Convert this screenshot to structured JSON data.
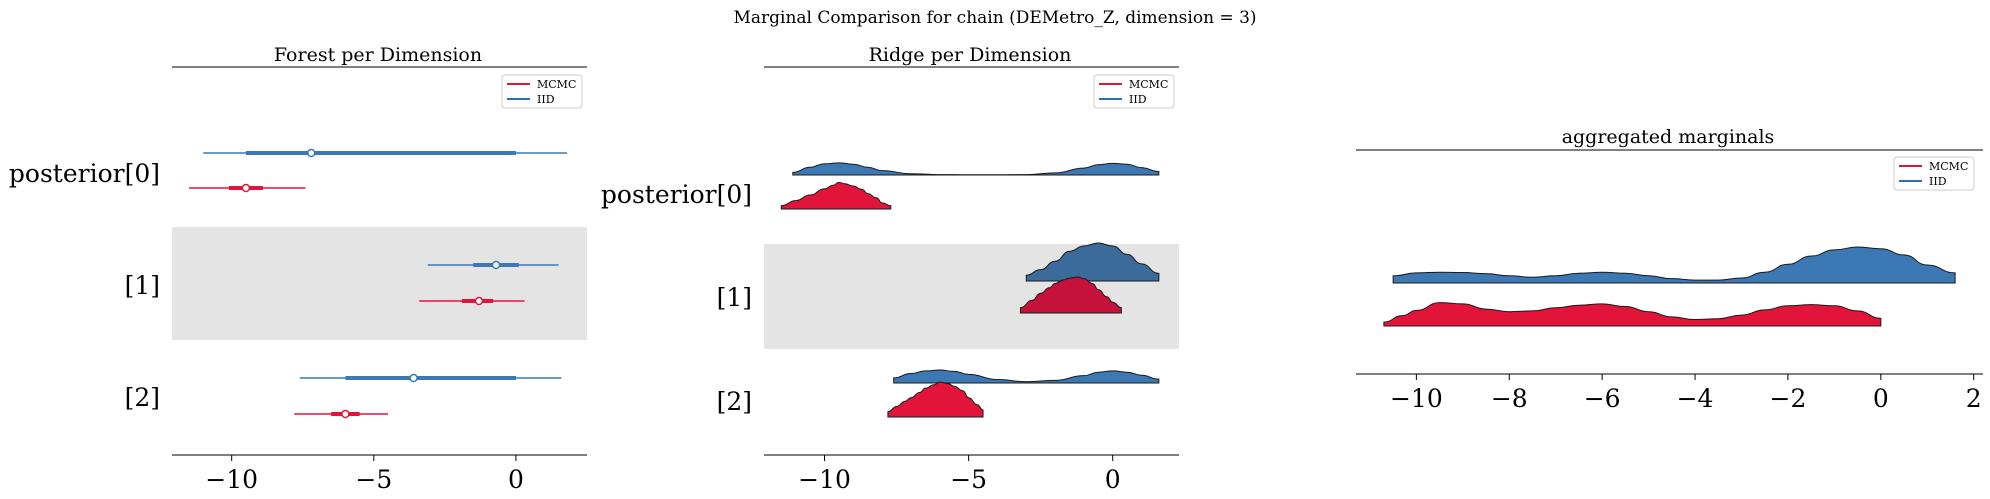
{
  "suptitle": "Marginal Comparison for chain (DEMetro_Z, dimension = 3)",
  "colors": {
    "mcmc": "#e3143a",
    "mcmc_shade": "#c5123a",
    "iid": "#3c78b4",
    "iid_line": "#2c6cb8",
    "band": "#e4e4e4"
  },
  "chart_data": [
    {
      "type": "forest",
      "title": "Forest per Dimension",
      "y_labels": [
        "posterior[0]",
        "[1]",
        "[2]"
      ],
      "x_ticks": [
        "−10",
        "−5",
        "0"
      ],
      "x_tick_values": [
        -10,
        -5,
        0
      ],
      "xlim": [
        -12.1,
        2.5
      ],
      "legend": {
        "position": "top-right",
        "entries": [
          "MCMC",
          "IID"
        ]
      },
      "series": [
        {
          "name": "IID",
          "color": "#3c78b4",
          "intervals": [
            {
              "dim": 0,
              "hdi": [
                -11,
                1.8
              ],
              "iqr": [
                -9.5,
                0
              ],
              "median": -7.2
            },
            {
              "dim": 1,
              "hdi": [
                -3.1,
                1.5
              ],
              "iqr": [
                -1.5,
                0.1
              ],
              "median": -0.7
            },
            {
              "dim": 2,
              "hdi": [
                -7.6,
                1.6
              ],
              "iqr": [
                -6.0,
                0
              ],
              "median": -3.6
            }
          ]
        },
        {
          "name": "MCMC",
          "color": "#e3143a",
          "intervals": [
            {
              "dim": 0,
              "hdi": [
                -11.5,
                -7.4
              ],
              "iqr": [
                -10.1,
                -8.9
              ],
              "median": -9.5
            },
            {
              "dim": 1,
              "hdi": [
                -3.4,
                0.3
              ],
              "iqr": [
                -1.9,
                -0.8
              ],
              "median": -1.3
            },
            {
              "dim": 2,
              "hdi": [
                -7.8,
                -4.5
              ],
              "iqr": [
                -6.5,
                -5.5
              ],
              "median": -6.0
            }
          ]
        }
      ]
    },
    {
      "type": "ridge",
      "title": "Ridge per Dimension",
      "y_labels": [
        "posterior[0]",
        "[1]",
        "[2]"
      ],
      "x_ticks": [
        "−10",
        "−5",
        "0"
      ],
      "x_tick_values": [
        -10,
        -5,
        0
      ],
      "xlim": [
        -12.1,
        2.3
      ],
      "legend": {
        "position": "top-right",
        "entries": [
          "MCMC",
          "IID"
        ]
      },
      "series": [
        {
          "name": "IID",
          "color": "#3c78b4",
          "ridges": [
            {
              "dim": 0,
              "x": [
                -11.1,
                -10.5,
                -10,
                -9.5,
                -9,
                -8.5,
                -8,
                -7,
                -6,
                -5,
                -4,
                -3,
                -2,
                -1,
                -0.5,
                0,
                0.5,
                1,
                1.6
              ],
              "density": [
                0.06,
                0.18,
                0.26,
                0.28,
                0.25,
                0.18,
                0.1,
                0.03,
                0.01,
                0.005,
                0.005,
                0.01,
                0.05,
                0.16,
                0.24,
                0.27,
                0.25,
                0.17,
                0.08
              ]
            },
            {
              "dim": 1,
              "x": [
                -3,
                -2.5,
                -2,
                -1.5,
                -1,
                -0.5,
                0,
                0.5,
                1,
                1.6
              ],
              "density": [
                0.15,
                0.3,
                0.52,
                0.78,
                0.92,
                1.0,
                0.92,
                0.7,
                0.45,
                0.2
              ]
            },
            {
              "dim": 2,
              "x": [
                -7.6,
                -7,
                -6.5,
                -6,
                -5.5,
                -5,
                -4,
                -3,
                -2,
                -1,
                -0.5,
                0,
                0.5,
                1,
                1.6
              ],
              "density": [
                0.12,
                0.22,
                0.28,
                0.3,
                0.27,
                0.2,
                0.08,
                0.03,
                0.06,
                0.17,
                0.25,
                0.28,
                0.25,
                0.18,
                0.09
              ]
            }
          ]
        },
        {
          "name": "MCMC",
          "color": "#e3143a",
          "ridges": [
            {
              "dim": 0,
              "x": [
                -11.5,
                -11,
                -10.5,
                -10,
                -9.7,
                -9.5,
                -9.3,
                -9,
                -8.7,
                -8.5,
                -8.2,
                -8,
                -7.7
              ],
              "density": [
                0.12,
                0.3,
                0.5,
                0.72,
                0.85,
                0.95,
                0.9,
                0.82,
                0.7,
                0.55,
                0.4,
                0.22,
                0.12
              ]
            },
            {
              "dim": 1,
              "x": [
                -3.2,
                -2.8,
                -2.5,
                -2.2,
                -2,
                -1.7,
                -1.5,
                -1.2,
                -1,
                -0.7,
                -0.5,
                -0.2,
                0,
                0.3
              ],
              "density": [
                0.15,
                0.35,
                0.55,
                0.7,
                0.82,
                0.92,
                0.97,
                1.0,
                0.95,
                0.82,
                0.65,
                0.45,
                0.3,
                0.15
              ]
            },
            {
              "dim": 2,
              "x": [
                -7.8,
                -7.5,
                -7.2,
                -7,
                -6.7,
                -6.5,
                -6.2,
                -6,
                -5.7,
                -5.5,
                -5.2,
                -5,
                -4.7,
                -4.5
              ],
              "density": [
                0.15,
                0.3,
                0.45,
                0.55,
                0.7,
                0.82,
                0.92,
                1.0,
                0.95,
                0.88,
                0.75,
                0.55,
                0.35,
                0.2
              ]
            }
          ]
        }
      ]
    },
    {
      "type": "ridge",
      "title": "aggregated marginals",
      "x_ticks": [
        "−10",
        "−8",
        "−6",
        "−4",
        "−2",
        "0",
        "2"
      ],
      "x_tick_values": [
        -10,
        -8,
        -6,
        -4,
        -2,
        0,
        2
      ],
      "xlim": [
        -11.3,
        2.2
      ],
      "legend": {
        "position": "top-right",
        "entries": [
          "MCMC",
          "IID"
        ]
      },
      "series": [
        {
          "name": "IID",
          "color": "#3c78b4",
          "x": [
            -10.5,
            -10,
            -9.5,
            -9,
            -8.5,
            -8,
            -7.5,
            -7,
            -6.5,
            -6,
            -5.5,
            -5,
            -4.5,
            -4,
            -3.5,
            -3,
            -2.5,
            -2,
            -1.5,
            -1,
            -0.5,
            0,
            0.5,
            1,
            1.6
          ],
          "density": [
            0.2,
            0.28,
            0.3,
            0.29,
            0.26,
            0.2,
            0.16,
            0.2,
            0.27,
            0.3,
            0.27,
            0.2,
            0.12,
            0.08,
            0.08,
            0.14,
            0.3,
            0.52,
            0.75,
            0.92,
            1.0,
            0.95,
            0.78,
            0.5,
            0.28
          ]
        },
        {
          "name": "MCMC",
          "color": "#e3143a",
          "x": [
            -10.7,
            -10.3,
            -10,
            -9.5,
            -9,
            -8.5,
            -8,
            -7.5,
            -7,
            -6.5,
            -6,
            -5.5,
            -5,
            -4.5,
            -4,
            -3.5,
            -3,
            -2.5,
            -2,
            -1.5,
            -1,
            -0.5,
            0
          ],
          "density": [
            0.15,
            0.4,
            0.6,
            0.9,
            0.85,
            0.65,
            0.55,
            0.58,
            0.7,
            0.8,
            0.85,
            0.75,
            0.55,
            0.35,
            0.25,
            0.28,
            0.42,
            0.62,
            0.78,
            0.82,
            0.78,
            0.58,
            0.3
          ]
        }
      ]
    }
  ]
}
